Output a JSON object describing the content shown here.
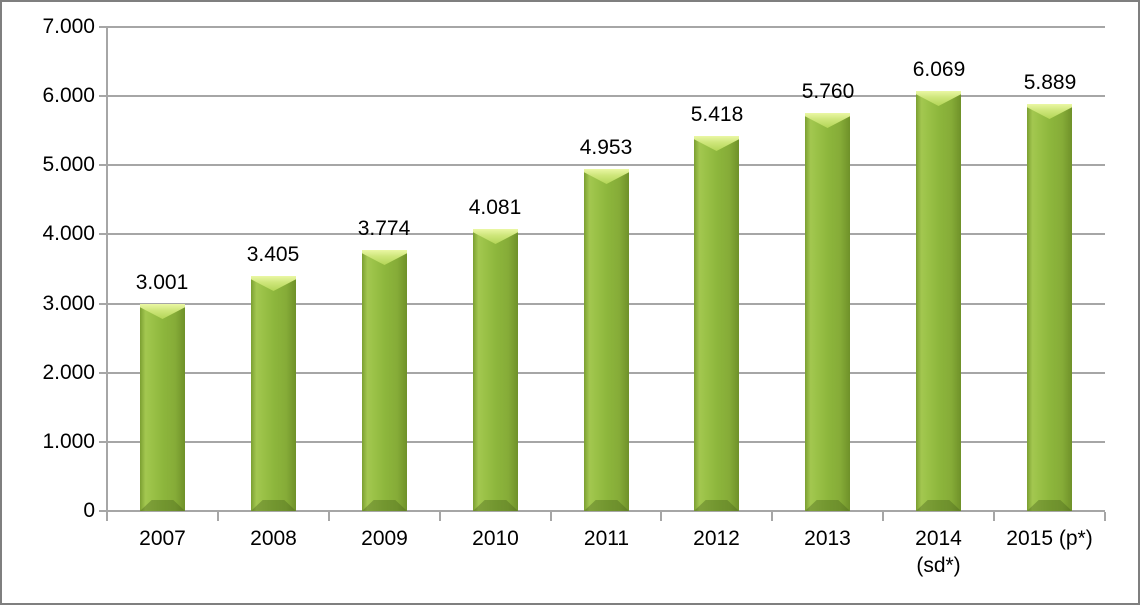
{
  "chart_data": {
    "type": "bar",
    "title": "",
    "xlabel": "",
    "ylabel": "",
    "categories": [
      "2007",
      "2008",
      "2009",
      "2010",
      "2011",
      "2012",
      "2013",
      "2014\n(sd*)",
      "2015 (p*)"
    ],
    "values": [
      3001,
      3405,
      3774,
      4081,
      4953,
      5418,
      5760,
      6069,
      5889
    ],
    "value_labels": [
      "3.001",
      "3.405",
      "3.774",
      "4.081",
      "4.953",
      "5.418",
      "5.760",
      "6.069",
      "5.889"
    ],
    "y_tick_labels": [
      "0",
      "1.000",
      "2.000",
      "3.000",
      "4.000",
      "5.000",
      "6.000",
      "7.000"
    ],
    "ylim": [
      0,
      7000
    ],
    "y_tick_step": 1000,
    "grid": true,
    "legend": false,
    "colors": {
      "bar_body": "#8db63c",
      "bar_highlight": "#d9ec86",
      "bar_edge_dark": "#6f9129",
      "gridline": "#a6a6a6",
      "text": "#000000",
      "frame_border": "#7f7f7f",
      "background": "#ffffff"
    }
  }
}
